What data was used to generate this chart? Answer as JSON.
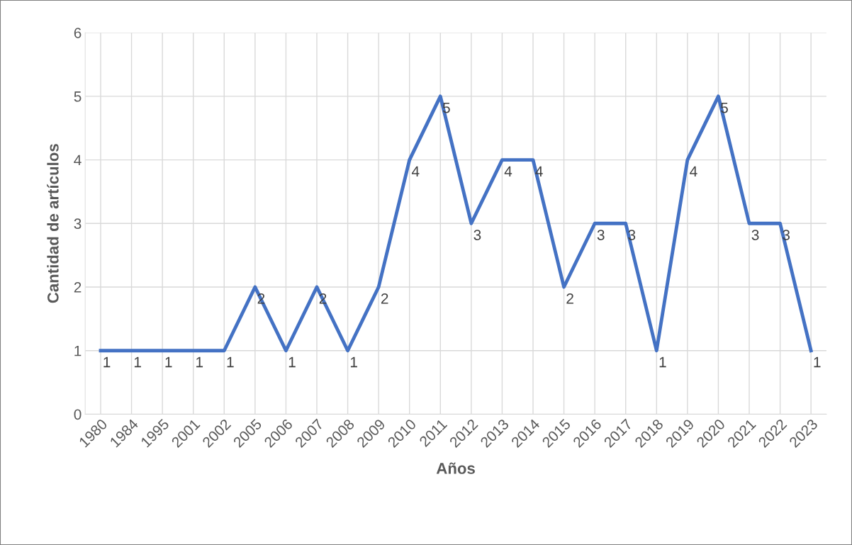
{
  "chart_data": {
    "type": "line",
    "xlabel": "Años",
    "ylabel": "Cantidad de artículos",
    "categories": [
      "1980",
      "1984",
      "1995",
      "2001",
      "2002",
      "2005",
      "2006",
      "2007",
      "2008",
      "2009",
      "2010",
      "2011",
      "2012",
      "2013",
      "2014",
      "2015",
      "2016",
      "2017",
      "2018",
      "2019",
      "2020",
      "2021",
      "2022",
      "2023"
    ],
    "series": [
      {
        "color": "#4472c4",
        "values": [
          1,
          1,
          1,
          1,
          1,
          2,
          1,
          2,
          1,
          2,
          4,
          5,
          3,
          4,
          4,
          2,
          3,
          3,
          1,
          4,
          5,
          3,
          3,
          1
        ]
      }
    ],
    "ylim": [
      0,
      6
    ],
    "yticks": [
      0,
      1,
      2,
      3,
      4,
      5,
      6
    ],
    "grid": true,
    "data_labels": true,
    "marker": "none",
    "line_style": "solid"
  }
}
